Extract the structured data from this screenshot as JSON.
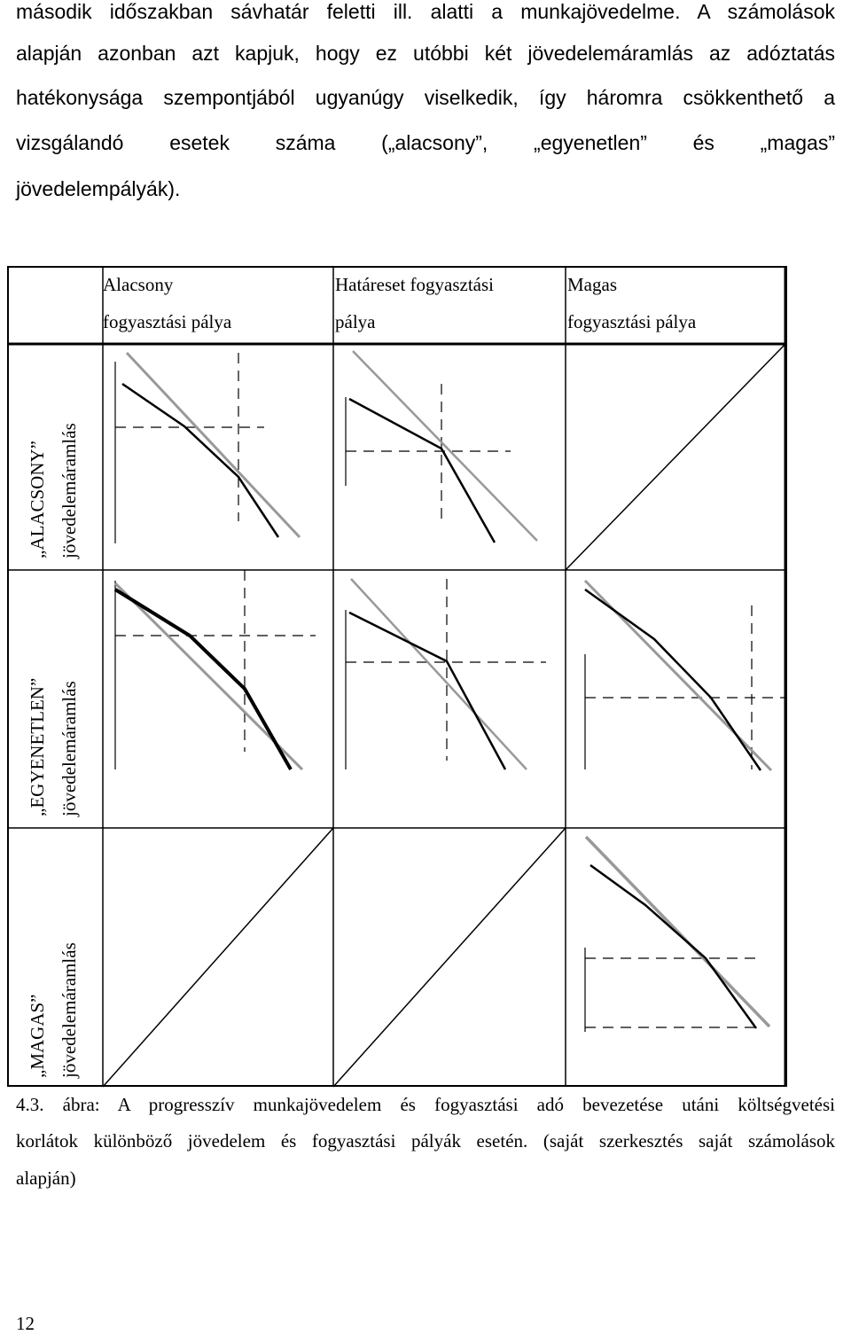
{
  "paragraph": {
    "lines": [
      "második időszakban sávhatár feletti ill. alatti a munkajövedelme. A számolások",
      "alapján azonban azt kapjuk, hogy ez utóbbi két jövedelemáramlás az adóztatás",
      "hatékonysága szempontjából ugyanúgy viselkedik, így háromra csökkenthető a",
      "vizsgálandó esetek száma („alacsony”, „egyenetlen” és „magas”",
      "jövedelempályák)."
    ]
  },
  "table": {
    "column_headers": [
      {
        "line1": "Alacsony",
        "line2": "fogyasztási pálya"
      },
      {
        "line1": "Határeset fogyasztási",
        "line2": "pálya"
      },
      {
        "line1": "Magas",
        "line2": "fogyasztási pálya"
      }
    ],
    "row_headers": [
      {
        "line1": "„ALACSONY”",
        "line2": "jövedelemáramlás"
      },
      {
        "line1": "„EGYENETLEN”",
        "line2": "jövedelemáramlás"
      },
      {
        "line1": "„MAGAS”",
        "line2": "jövedelemáramlás"
      }
    ],
    "cells": [
      [
        "budget-constraint-diagram",
        "budget-constraint-diagram",
        "empty-crossed-cell"
      ],
      [
        "budget-constraint-diagram",
        "budget-constraint-diagram",
        "budget-constraint-diagram"
      ],
      [
        "empty-crossed-cell",
        "empty-crossed-cell",
        "budget-constraint-diagram"
      ]
    ],
    "colors": {
      "kinked_constraint": "#000000",
      "linear_constraint": "#999999",
      "guide_lines": "#000000"
    }
  },
  "caption": {
    "lines": [
      "4.3. ábra: A progresszív munkajövedelem és fogyasztási adó bevezetése utáni költségvetési",
      "korlátok különböző jövedelem és fogyasztási pályák esetén. (saját szerkesztés saját számolások",
      "alapján)"
    ]
  },
  "page_number": "12"
}
